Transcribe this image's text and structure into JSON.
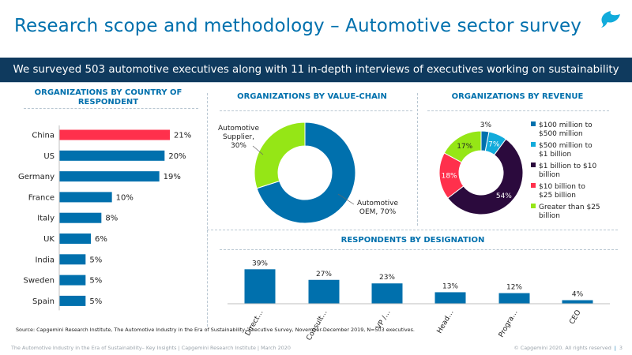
{
  "title": "Research scope and methodology – Automotive sector survey",
  "banner": "We surveyed 503 automotive executives along with 11 in-depth interviews of executives working on sustainability",
  "colors": {
    "brand": "#0070AD",
    "navy": "#0F3A5E",
    "highlight": "#FF304C",
    "green": "#95E616",
    "cyan": "#12ABDB",
    "dark": "#2B0A3D"
  },
  "chart_data": [
    {
      "type": "bar",
      "orientation": "horizontal",
      "title": "ORGANIZATIONS BY COUNTRY OF RESPONDENT",
      "categories": [
        "China",
        "US",
        "Germany",
        "France",
        "Italy",
        "UK",
        "India",
        "Sweden",
        "Spain"
      ],
      "values": [
        21,
        20,
        19,
        10,
        8,
        6,
        5,
        5,
        5
      ],
      "value_labels": [
        "21%",
        "20%",
        "19%",
        "10%",
        "8%",
        "6%",
        "5%",
        "5%",
        "5%"
      ],
      "highlight": "China",
      "xlim": [
        0,
        25
      ]
    },
    {
      "type": "pie",
      "donut": true,
      "title": "ORGANIZATIONS BY VALUE-CHAIN",
      "categories": [
        "Automotive OEM",
        "Automotive Supplier"
      ],
      "values": [
        70,
        30
      ],
      "labels": [
        "Automotive OEM, 70%",
        "Automotive Supplier, 30%"
      ]
    },
    {
      "type": "pie",
      "donut": true,
      "title": "ORGANIZATIONS BY REVENUE",
      "categories": [
        "$100 million to $500 million",
        "$500 million to $1 billion",
        "$1 billion to $10 billion",
        "$10 billion to $25 billion",
        "Greater than $25 billion"
      ],
      "values": [
        3,
        7,
        54,
        18,
        17
      ],
      "value_labels": [
        "3%",
        "7%",
        "54%",
        "18%",
        "17%"
      ],
      "legend": "right"
    },
    {
      "type": "bar",
      "title": "RESPONDENTS BY DESIGNATION",
      "categories": [
        "Direct…",
        "Consult…",
        "VP /…",
        "Head…",
        "Progra…",
        "CEO"
      ],
      "values": [
        39,
        27,
        23,
        13,
        12,
        4
      ],
      "value_labels": [
        "39%",
        "27%",
        "23%",
        "13%",
        "12%",
        "4%"
      ],
      "ylim": [
        0,
        45
      ]
    }
  ],
  "source": "Source: Capgemini Research Institute, The Automotive Industry in the Era of Sustainability- Executive Survey, November-December 2019, N=503 executives.",
  "footer": {
    "left": "The Automotive Industry in the Era of Sustainability– Key Insights | Capgemini Research Institute | March 2020",
    "copyright": "© Capgemini 2020. All rights reserved",
    "page": "3"
  }
}
